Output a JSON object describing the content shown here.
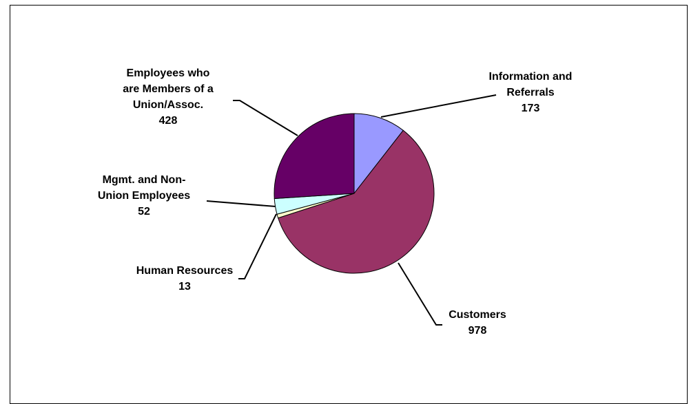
{
  "chart_data": {
    "type": "pie",
    "title": "",
    "legend": "none",
    "slices": [
      {
        "label_lines": [
          "Information and",
          "Referrals"
        ],
        "value": 173,
        "value_text": "173",
        "color": "#9999ff"
      },
      {
        "label_lines": [
          "Customers"
        ],
        "value": 978,
        "value_text": "978",
        "color": "#993366"
      },
      {
        "label_lines": [
          "Human Resources"
        ],
        "value": 13,
        "value_text": "13",
        "color": "#ffffcc"
      },
      {
        "label_lines": [
          "Mgmt. and Non-",
          "Union Employees"
        ],
        "value": 52,
        "value_text": "52",
        "color": "#ccffff"
      },
      {
        "label_lines": [
          "Employees who",
          "are Members of a",
          "Union/Assoc."
        ],
        "value": 428,
        "value_text": "428",
        "color": "#660066"
      }
    ]
  }
}
